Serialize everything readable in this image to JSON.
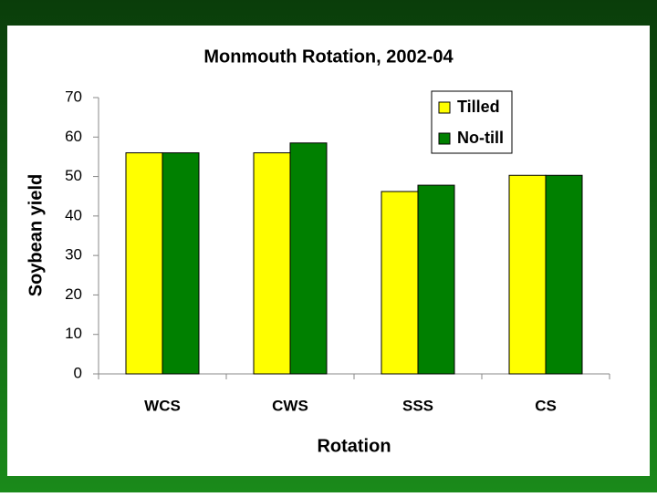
{
  "chart_data": {
    "type": "bar",
    "title": "Monmouth Rotation, 2002-04",
    "x_label": "Rotation",
    "y_label": "Soybean yield",
    "categories": [
      "WCS",
      "CWS",
      "SSS",
      "CS"
    ],
    "series": [
      {
        "name": "Tilled",
        "color": "#ffff00",
        "values": [
          56,
          56,
          46.2,
          50.3
        ]
      },
      {
        "name": "No-till",
        "color": "#008000",
        "values": [
          56,
          58.5,
          47.8,
          50.3
        ]
      }
    ],
    "ylim": [
      0,
      70
    ],
    "yticks": [
      0,
      10,
      20,
      30,
      40,
      50,
      60,
      70
    ],
    "grid": false,
    "legend": "upper-right"
  }
}
